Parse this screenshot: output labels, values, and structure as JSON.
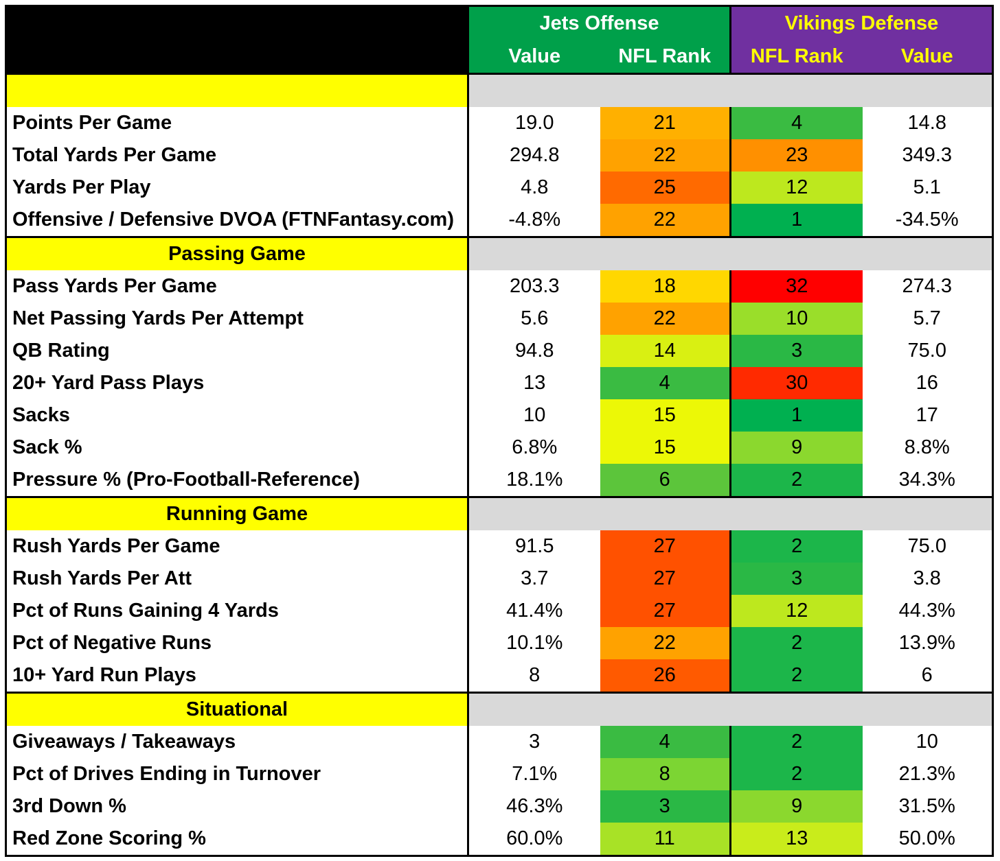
{
  "header": {
    "offense_team": "Jets Offense",
    "defense_team": "Vikings Defense",
    "col_value": "Value",
    "col_rank": "NFL Rank",
    "offense_color": "#00a04a",
    "defense_color": "#7030a0",
    "defense_text_color": "#ffff00"
  },
  "rank_colors": {
    "1": "#00b050",
    "2": "#1cb64a",
    "3": "#2ab845",
    "4": "#3abb42",
    "6": "#5cc53b",
    "8": "#7cd533",
    "9": "#8bd82e",
    "10": "#9ade2a",
    "11": "#a8e226",
    "12": "#bde81e",
    "13": "#c9ec1b",
    "14": "#d9f012",
    "15": "#ecf806",
    "18": "#ffd700",
    "21": "#ffb000",
    "22": "#ffa200",
    "23": "#ff9000",
    "25": "#ff6a00",
    "26": "#ff5a00",
    "27": "#ff5100",
    "30": "#ff2a00",
    "32": "#ff0000"
  },
  "sections": [
    {
      "title": "",
      "rows": [
        {
          "label": "Points Per Game",
          "off_value": "19.0",
          "off_rank": "21",
          "def_rank": "4",
          "def_value": "14.8"
        },
        {
          "label": "Total Yards Per Game",
          "off_value": "294.8",
          "off_rank": "22",
          "def_rank": "23",
          "def_value": "349.3"
        },
        {
          "label": "Yards Per Play",
          "off_value": "4.8",
          "off_rank": "25",
          "def_rank": "12",
          "def_value": "5.1"
        },
        {
          "label": "Offensive / Defensive DVOA (FTNFantasy.com)",
          "off_value": "-4.8%",
          "off_rank": "22",
          "def_rank": "1",
          "def_value": "-34.5%"
        }
      ]
    },
    {
      "title": "Passing Game",
      "rows": [
        {
          "label": "Pass Yards Per Game",
          "off_value": "203.3",
          "off_rank": "18",
          "def_rank": "32",
          "def_value": "274.3"
        },
        {
          "label": "Net Passing Yards Per Attempt",
          "off_value": "5.6",
          "off_rank": "22",
          "def_rank": "10",
          "def_value": "5.7"
        },
        {
          "label": "QB Rating",
          "off_value": "94.8",
          "off_rank": "14",
          "def_rank": "3",
          "def_value": "75.0"
        },
        {
          "label": "20+ Yard Pass Plays",
          "off_value": "13",
          "off_rank": "4",
          "def_rank": "30",
          "def_value": "16"
        },
        {
          "label": "Sacks",
          "off_value": "10",
          "off_rank": "15",
          "def_rank": "1",
          "def_value": "17"
        },
        {
          "label": "Sack %",
          "off_value": "6.8%",
          "off_rank": "15",
          "def_rank": "9",
          "def_value": "8.8%"
        },
        {
          "label": "Pressure % (Pro-Football-Reference)",
          "off_value": "18.1%",
          "off_rank": "6",
          "def_rank": "2",
          "def_value": "34.3%"
        }
      ]
    },
    {
      "title": "Running Game",
      "rows": [
        {
          "label": "Rush Yards Per Game",
          "off_value": "91.5",
          "off_rank": "27",
          "def_rank": "2",
          "def_value": "75.0"
        },
        {
          "label": "Rush Yards Per Att",
          "off_value": "3.7",
          "off_rank": "27",
          "def_rank": "3",
          "def_value": "3.8"
        },
        {
          "label": "Pct of Runs Gaining 4 Yards",
          "off_value": "41.4%",
          "off_rank": "27",
          "def_rank": "12",
          "def_value": "44.3%"
        },
        {
          "label": "Pct of Negative Runs",
          "off_value": "10.1%",
          "off_rank": "22",
          "def_rank": "2",
          "def_value": "13.9%"
        },
        {
          "label": "10+ Yard Run Plays",
          "off_value": "8",
          "off_rank": "26",
          "def_rank": "2",
          "def_value": "6"
        }
      ]
    },
    {
      "title": "Situational",
      "rows": [
        {
          "label": "Giveaways / Takeaways",
          "off_value": "3",
          "off_rank": "4",
          "def_rank": "2",
          "def_value": "10"
        },
        {
          "label": "Pct of Drives Ending in Turnover",
          "off_value": "7.1%",
          "off_rank": "8",
          "def_rank": "2",
          "def_value": "21.3%"
        },
        {
          "label": "3rd Down %",
          "off_value": "46.3%",
          "off_rank": "3",
          "def_rank": "9",
          "def_value": "31.5%"
        },
        {
          "label": "Red Zone Scoring %",
          "off_value": "60.0%",
          "off_rank": "11",
          "def_rank": "13",
          "def_value": "50.0%"
        }
      ]
    }
  ]
}
